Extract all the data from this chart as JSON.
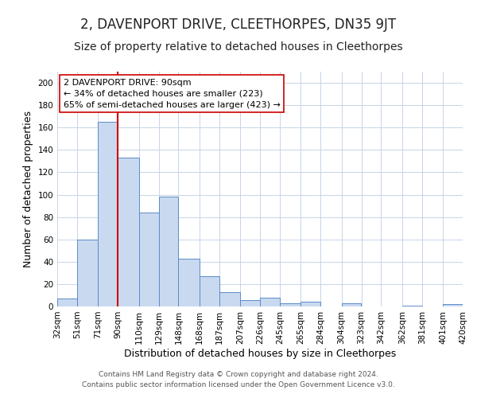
{
  "title": "2, DAVENPORT DRIVE, CLEETHORPES, DN35 9JT",
  "subtitle": "Size of property relative to detached houses in Cleethorpes",
  "xlabel": "Distribution of detached houses by size in Cleethorpes",
  "ylabel": "Number of detached properties",
  "bin_labels": [
    "32sqm",
    "51sqm",
    "71sqm",
    "90sqm",
    "110sqm",
    "129sqm",
    "148sqm",
    "168sqm",
    "187sqm",
    "207sqm",
    "226sqm",
    "245sqm",
    "265sqm",
    "284sqm",
    "304sqm",
    "323sqm",
    "342sqm",
    "362sqm",
    "381sqm",
    "401sqm",
    "420sqm"
  ],
  "bin_edges": [
    32,
    51,
    71,
    90,
    110,
    129,
    148,
    168,
    187,
    207,
    226,
    245,
    265,
    284,
    304,
    323,
    342,
    362,
    381,
    401,
    420
  ],
  "bar_heights": [
    7,
    60,
    165,
    133,
    84,
    98,
    43,
    27,
    13,
    6,
    8,
    3,
    4,
    0,
    3,
    0,
    0,
    1,
    0,
    2
  ],
  "bar_color": "#c9d9ef",
  "bar_edge_color": "#5b8cc8",
  "marker_value": 90,
  "marker_color": "#cc0000",
  "annotation_title": "2 DAVENPORT DRIVE: 90sqm",
  "annotation_line1": "← 34% of detached houses are smaller (223)",
  "annotation_line2": "65% of semi-detached houses are larger (423) →",
  "annotation_box_color": "#ffffff",
  "annotation_box_edge": "#cc0000",
  "ylim": [
    0,
    210
  ],
  "yticks": [
    0,
    20,
    40,
    60,
    80,
    100,
    120,
    140,
    160,
    180,
    200
  ],
  "footer1": "Contains HM Land Registry data © Crown copyright and database right 2024.",
  "footer2": "Contains public sector information licensed under the Open Government Licence v3.0.",
  "background_color": "#ffffff",
  "grid_color": "#c8d4e8",
  "title_fontsize": 12,
  "subtitle_fontsize": 10,
  "axis_label_fontsize": 9,
  "tick_fontsize": 7.5,
  "annotation_fontsize": 8,
  "footer_fontsize": 6.5
}
